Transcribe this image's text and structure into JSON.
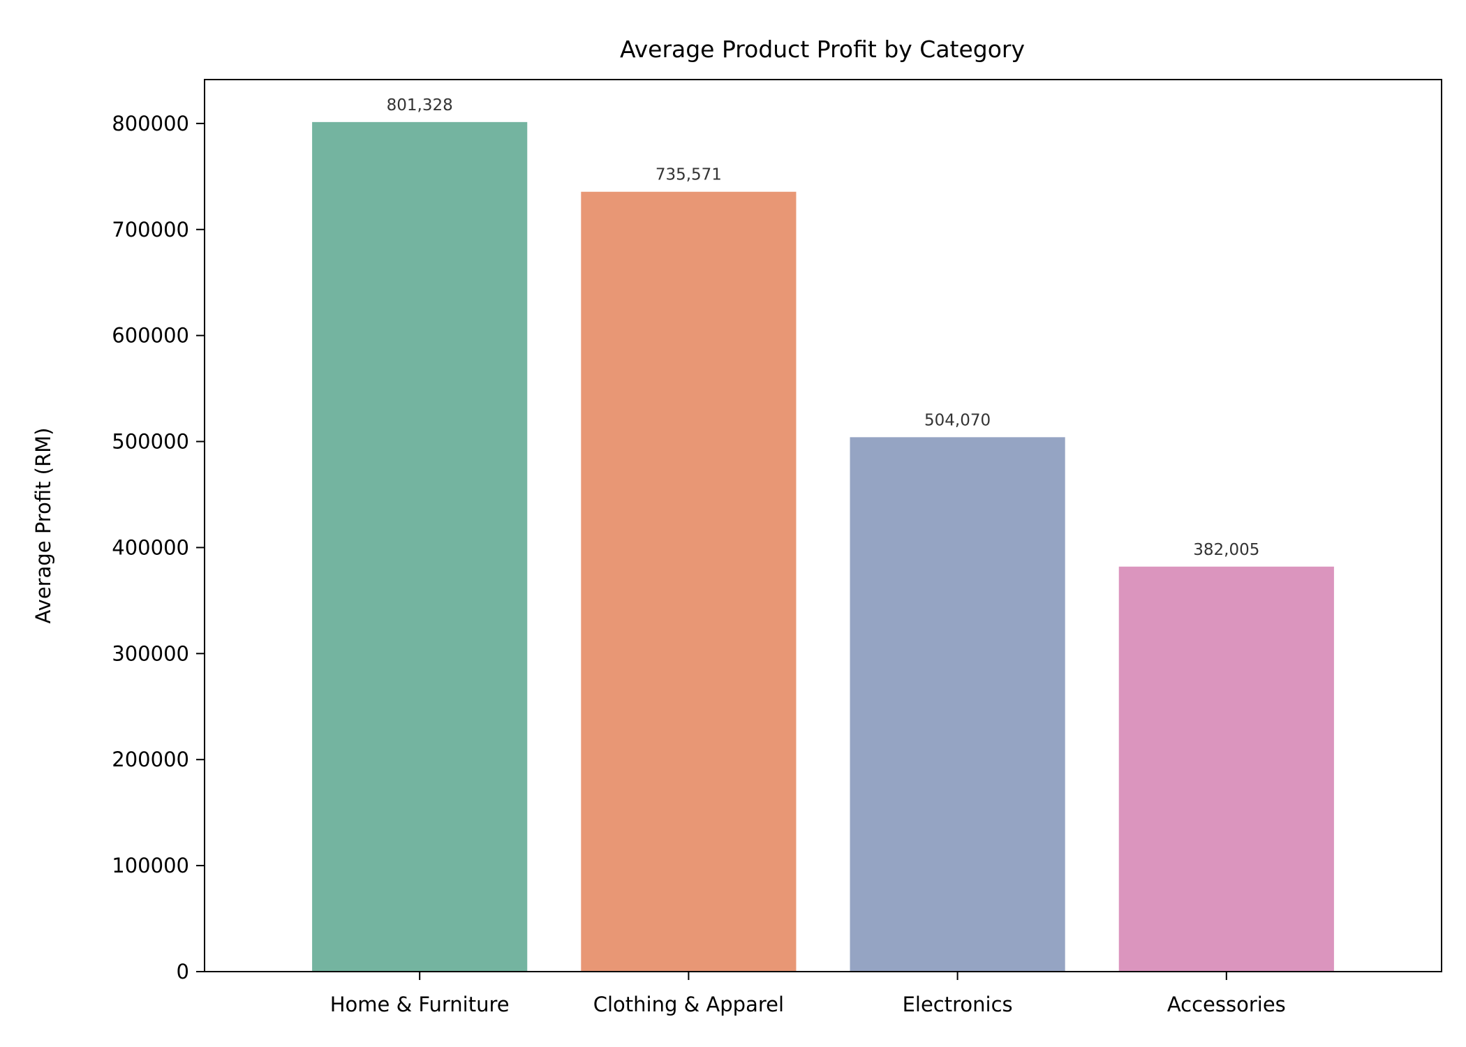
{
  "chart_data": {
    "type": "bar",
    "title": "Average Product Profit by Category",
    "xlabel": "",
    "ylabel": "Average Profit (RM)",
    "categories": [
      "Home & Furniture",
      "Clothing & Apparel",
      "Electronics",
      "Accessories"
    ],
    "values": [
      801328,
      735571,
      504070,
      382005
    ],
    "value_labels": [
      "801,328",
      "735,571",
      "504,070",
      "382,005"
    ],
    "colors": [
      "#74b4a0",
      "#e89775",
      "#95a4c3",
      "#db95be"
    ],
    "ylim": [
      0,
      841394
    ],
    "yticks": [
      0,
      100000,
      200000,
      300000,
      400000,
      500000,
      600000,
      700000,
      800000
    ],
    "ytick_labels": [
      "0",
      "100000",
      "200000",
      "300000",
      "400000",
      "500000",
      "600000",
      "700000",
      "800000"
    ],
    "grid": false,
    "legend": "none"
  }
}
